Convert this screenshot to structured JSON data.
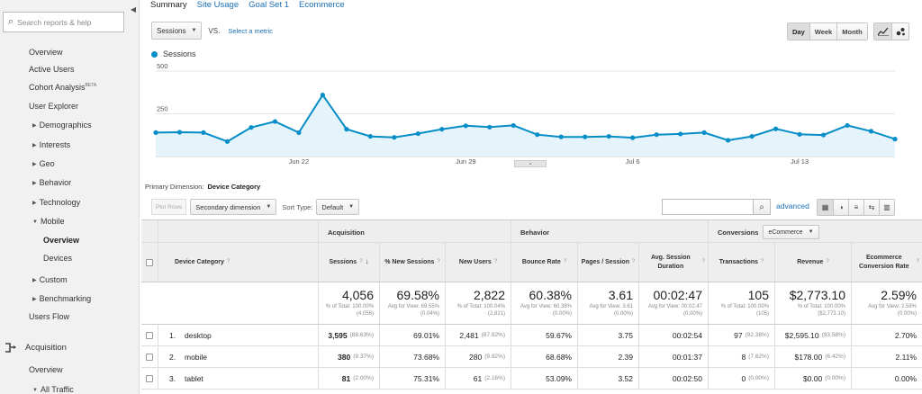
{
  "sidebar": {
    "search_placeholder": "Search reports & help",
    "items": [
      {
        "label": "Overview"
      },
      {
        "label": "Active Users"
      },
      {
        "label": "Cohort Analysis",
        "badge": "BETA"
      },
      {
        "label": "User Explorer"
      },
      {
        "label": "Demographics"
      },
      {
        "label": "Interests"
      },
      {
        "label": "Geo"
      },
      {
        "label": "Behavior"
      },
      {
        "label": "Technology"
      },
      {
        "label": "Mobile"
      },
      {
        "label": "Overview"
      },
      {
        "label": "Devices"
      },
      {
        "label": "Custom"
      },
      {
        "label": "Benchmarking"
      },
      {
        "label": "Users Flow"
      }
    ],
    "section": {
      "label": "Acquisition"
    },
    "section_items": [
      {
        "label": "Overview"
      },
      {
        "label": "All Traffic"
      }
    ]
  },
  "tabs": [
    "Summary",
    "Site Usage",
    "Goal Set 1",
    "Ecommerce"
  ],
  "controls": {
    "metric": "Sessions",
    "vs": "VS.",
    "select_metric": "Select a metric",
    "ranges": [
      "Day",
      "Week",
      "Month"
    ],
    "selected_range": "Day"
  },
  "chart_data": {
    "type": "area",
    "series": [
      {
        "name": "Sessions",
        "color": "#058dc7",
        "values": [
          140,
          142,
          140,
          88,
          170,
          205,
          140,
          360,
          160,
          118,
          112,
          134,
          160,
          180,
          172,
          182,
          128,
          115,
          115,
          118,
          110,
          128,
          132,
          140,
          95,
          118,
          162,
          130,
          126,
          182,
          148,
          102
        ]
      }
    ],
    "ylim": [
      0,
      500
    ],
    "yticks": [
      250,
      500
    ],
    "xtick_labels": [
      "Jun 22",
      "Jun 29",
      "Jul 6",
      "Jul 13"
    ],
    "grid": true
  },
  "primary_dimension": {
    "label": "Primary Dimension:",
    "value": "Device Category"
  },
  "table_toolbar": {
    "plot_rows": "Plot Rows",
    "secondary_dimension": "Secondary dimension",
    "sort_type_label": "Sort Type:",
    "sort_type": "Default",
    "advanced": "advanced"
  },
  "table": {
    "groups": {
      "acquisition": "Acquisition",
      "behavior": "Behavior",
      "conversions": "Conversions",
      "conversions_select": "eCommerce"
    },
    "columns": {
      "device": "Device Category",
      "sessions": "Sessions",
      "new_sessions": "% New Sessions",
      "new_users": "New Users",
      "bounce": "Bounce Rate",
      "pages": "Pages / Session",
      "duration": "Avg. Session Duration",
      "transactions": "Transactions",
      "revenue": "Revenue",
      "ecr": "Ecommerce Conversion Rate"
    },
    "totals": {
      "sessions": {
        "value": "4,056",
        "sub": "% of Total: 100.00% (4,056)"
      },
      "new_sessions": {
        "value": "69.58%",
        "sub": "Avg for View: 69.55% (0.04%)"
      },
      "new_users": {
        "value": "2,822",
        "sub": "% of Total: 100.04% (2,821)"
      },
      "bounce": {
        "value": "60.38%",
        "sub": "Avg for View: 60.38% (0.00%)"
      },
      "pages": {
        "value": "3.61",
        "sub": "Avg for View: 3.61 (0.00%)"
      },
      "duration": {
        "value": "00:02:47",
        "sub": "Avg for View: 00:02:47 (0.00%)"
      },
      "transactions": {
        "value": "105",
        "sub": "% of Total: 100.00% (105)"
      },
      "revenue": {
        "value": "$2,773.10",
        "sub": "% of Total: 100.00% ($2,773.10)"
      },
      "ecr": {
        "value": "2.59%",
        "sub": "Avg for View: 2.59% (0.00%)"
      }
    },
    "rows": [
      {
        "num": "1.",
        "device": "desktop",
        "sessions": "3,595",
        "sessions_pct": "(88.63%)",
        "new_sessions": "69.01%",
        "new_users": "2,481",
        "new_users_pct": "(87.92%)",
        "bounce": "59.67%",
        "pages": "3.75",
        "duration": "00:02:54",
        "transactions": "97",
        "transactions_pct": "(92.38%)",
        "revenue": "$2,595.10",
        "revenue_pct": "(93.58%)",
        "ecr": "2.70%"
      },
      {
        "num": "2.",
        "device": "mobile",
        "sessions": "380",
        "sessions_pct": "(9.37%)",
        "new_sessions": "73.68%",
        "new_users": "280",
        "new_users_pct": "(9.92%)",
        "bounce": "68.68%",
        "pages": "2.39",
        "duration": "00:01:37",
        "transactions": "8",
        "transactions_pct": "(7.62%)",
        "revenue": "$178.00",
        "revenue_pct": "(6.42%)",
        "ecr": "2.11%"
      },
      {
        "num": "3.",
        "device": "tablet",
        "sessions": "81",
        "sessions_pct": "(2.00%)",
        "new_sessions": "75.31%",
        "new_users": "61",
        "new_users_pct": "(2.16%)",
        "bounce": "53.09%",
        "pages": "3.52",
        "duration": "00:02:50",
        "transactions": "0",
        "transactions_pct": "(0.00%)",
        "revenue": "$0.00",
        "revenue_pct": "(0.00%)",
        "ecr": "0.00%"
      }
    ]
  }
}
